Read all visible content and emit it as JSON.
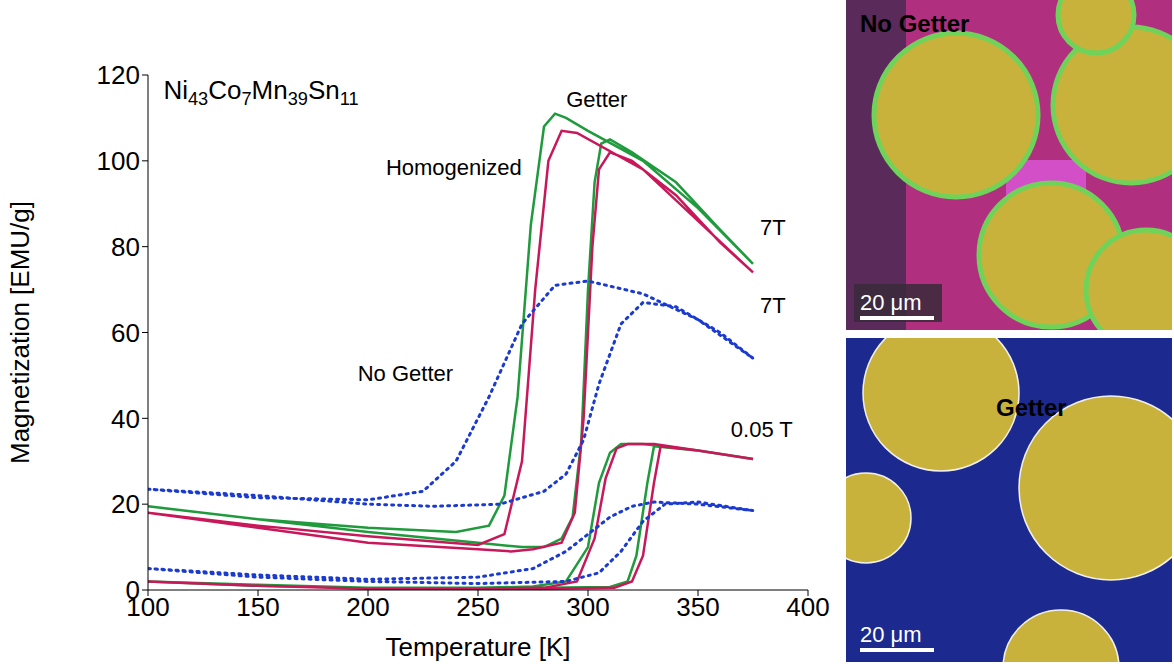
{
  "chart_data": {
    "type": "line",
    "xlabel": "Temperature [K]",
    "ylabel": "Magnetization [EMU/g]",
    "xlim": [
      100,
      400
    ],
    "xticks": [
      100,
      150,
      200,
      250,
      300,
      350,
      400
    ],
    "ylim": [
      0,
      120
    ],
    "yticks": [
      0,
      20,
      40,
      60,
      80,
      100,
      120
    ],
    "grid": false,
    "annotations": [
      {
        "text": "Ni43Co7Mn39Sn11",
        "x": 107,
        "y": 116
      },
      {
        "text": "Getter",
        "x": 304,
        "y": 114
      },
      {
        "text": "Homogenized",
        "x": 239,
        "y": 98
      },
      {
        "text": "No Getter",
        "x": 217,
        "y": 50
      },
      {
        "text": "7T",
        "x": 384,
        "y": 84
      },
      {
        "text": "7T",
        "x": 384,
        "y": 66
      },
      {
        "text": "0.05 T",
        "x": 379,
        "y": 37
      }
    ],
    "series": [
      {
        "name": "Getter",
        "field": "7T",
        "color": "#1f9a3c",
        "line_style": "solid",
        "marker": "none",
        "x": [
          100,
          150,
          200,
          240,
          255,
          262,
          268,
          274,
          280,
          285,
          290,
          300,
          325,
          350,
          375,
          360,
          340,
          320,
          310,
          306,
          303,
          300,
          297,
          293,
          288,
          280,
          270,
          250,
          200,
          150,
          100
        ],
        "values": [
          19.5,
          16.5,
          14.5,
          13.5,
          15,
          22,
          45,
          85,
          108,
          111,
          110,
          107,
          100,
          89,
          76,
          84,
          95,
          102,
          105,
          104,
          95,
          70,
          35,
          17,
          12,
          10,
          10,
          11,
          13.5,
          16.5,
          19.5
        ]
      },
      {
        "name": "Homogenized",
        "field": "7T",
        "color": "#c8185a",
        "line_style": "solid",
        "marker": "none",
        "x": [
          100,
          150,
          200,
          250,
          262,
          270,
          276,
          282,
          288,
          295,
          325,
          350,
          375,
          360,
          340,
          320,
          310,
          305,
          302,
          298,
          294,
          288,
          275,
          265,
          250,
          200,
          150,
          100
        ],
        "values": [
          18,
          15,
          12.5,
          10.5,
          13,
          30,
          70,
          100,
          107,
          106.5,
          98,
          86,
          74,
          81,
          92,
          100,
          102,
          98,
          80,
          40,
          18,
          11,
          9.5,
          9,
          9.5,
          11,
          14.5,
          18
        ]
      },
      {
        "name": "No Getter",
        "field": "7T",
        "color": "#1a3ad0",
        "line_style": "dotted",
        "marker": "none",
        "x": [
          100,
          150,
          200,
          225,
          240,
          255,
          270,
          285,
          300,
          325,
          350,
          375,
          360,
          340,
          325,
          315,
          305,
          298,
          290,
          280,
          260,
          230,
          200,
          150,
          100
        ],
        "values": [
          23.5,
          21.5,
          21,
          23,
          30,
          45,
          62,
          71,
          72,
          69,
          63,
          54,
          60,
          66,
          67,
          62,
          48,
          35,
          27,
          23,
          20,
          19.5,
          20,
          22,
          23.5
        ]
      },
      {
        "name": "Getter",
        "field": "0.05 T",
        "color": "#1f9a3c",
        "line_style": "solid",
        "marker": "none",
        "x": [
          100,
          150,
          200,
          250,
          275,
          290,
          300,
          305,
          310,
          315,
          325,
          350,
          375,
          350,
          330,
          327,
          322,
          318,
          310,
          280,
          200,
          150,
          100
        ],
        "values": [
          2,
          1.2,
          0.5,
          0.5,
          0.8,
          2,
          10,
          25,
          32,
          34,
          34,
          32.5,
          30.5,
          32.5,
          33.5,
          25,
          8,
          2,
          0.7,
          0.5,
          0.5,
          1,
          2
        ]
      },
      {
        "name": "Homogenized",
        "field": "0.05 T",
        "color": "#c8185a",
        "line_style": "solid",
        "marker": "none",
        "x": [
          100,
          150,
          200,
          250,
          280,
          295,
          303,
          308,
          313,
          318,
          330,
          350,
          375,
          350,
          333,
          330,
          325,
          320,
          312,
          280,
          200,
          150,
          100
        ],
        "values": [
          2,
          1,
          0.3,
          0.3,
          0.5,
          2,
          12,
          26,
          33,
          34,
          34,
          32.5,
          30.5,
          32.5,
          33.5,
          25,
          8,
          2,
          0.5,
          0.3,
          0.3,
          1,
          2
        ]
      },
      {
        "name": "No Getter",
        "field": "0.05 T",
        "color": "#1a3ad0",
        "line_style": "dotted",
        "marker": "none",
        "x": [
          100,
          150,
          200,
          250,
          275,
          290,
          300,
          310,
          320,
          330,
          350,
          375,
          350,
          335,
          325,
          315,
          305,
          290,
          250,
          200,
          150,
          100
        ],
        "values": [
          5,
          3.5,
          2.5,
          3,
          5,
          9,
          13,
          17,
          19.5,
          20.5,
          20,
          18.5,
          20.5,
          20,
          16,
          9,
          4,
          2,
          1.5,
          2,
          3,
          5
        ]
      }
    ]
  },
  "images": [
    {
      "title": "No Getter",
      "scale_bar": "20 μm"
    },
    {
      "title": "Getter",
      "scale_bar": "20 μm"
    }
  ]
}
